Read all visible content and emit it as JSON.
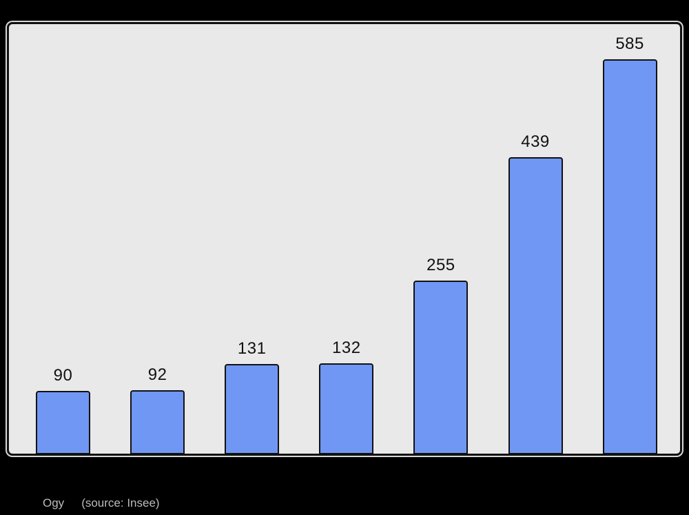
{
  "chart_data": {
    "type": "bar",
    "title": "",
    "xlabel": "",
    "ylabel": "",
    "categories": [],
    "values": [
      90,
      92,
      131,
      132,
      255,
      439,
      585
    ],
    "value_labels": [
      "90",
      "92",
      "131",
      "132",
      "255",
      "439",
      "585"
    ],
    "ylim": [
      0,
      640
    ],
    "grid": false,
    "legend": false,
    "bar_fill": "#7197f5",
    "bar_border": "#111111",
    "value_label_color": "#111111",
    "plot_background": "#e9e9e9",
    "page_background": "#000000"
  },
  "footer": {
    "commune": "Ogy",
    "source": "(source: Insee)",
    "color": "#bcbcbc"
  }
}
